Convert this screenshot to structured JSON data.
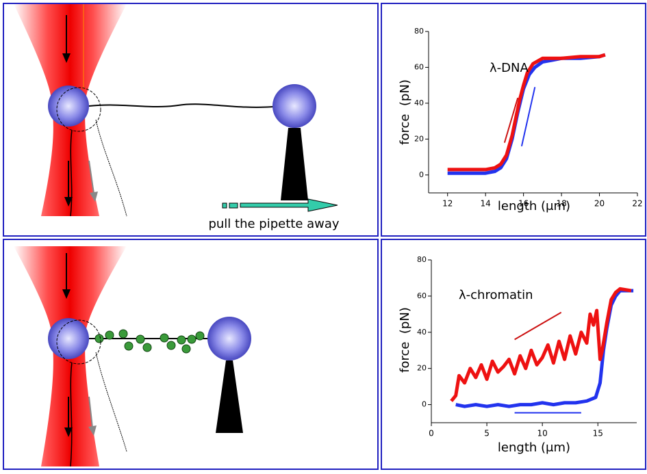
{
  "diagram": {
    "caption": "pull the pipette away"
  },
  "chart_data": [
    {
      "type": "line",
      "annotation": "λ-DNA",
      "x_label": "length (μm)",
      "y_label": "force  (pN)",
      "xlim": [
        11,
        22
      ],
      "ylim": [
        -10,
        80
      ],
      "xticks": [
        12,
        14,
        16,
        18,
        20,
        22
      ],
      "yticks": [
        0,
        20,
        40,
        60,
        80
      ],
      "series": [
        {
          "color": "#2233ee",
          "x": [
            12,
            13,
            14,
            14.5,
            14.8,
            15.1,
            15.4,
            15.7,
            16,
            16.3,
            16.6,
            17,
            17.5,
            18,
            19,
            20,
            20.3
          ],
          "values": [
            1,
            1,
            1,
            2,
            4,
            9,
            20,
            35,
            48,
            56,
            60,
            63,
            64,
            65,
            65,
            66,
            67
          ]
        },
        {
          "color": "#ee1111",
          "x": [
            12,
            13,
            14,
            14.5,
            14.8,
            15.1,
            15.4,
            15.6,
            15.8,
            16,
            16.2,
            16.5,
            17,
            18,
            19,
            20,
            20.3
          ],
          "values": [
            3,
            3,
            3,
            4,
            6,
            11,
            22,
            32,
            42,
            50,
            57,
            62,
            65,
            65,
            66,
            66,
            67
          ]
        }
      ],
      "guides": [
        {
          "color": "#cc1111",
          "x": [
            15.0,
            15.7
          ],
          "values": [
            18,
            43
          ]
        },
        {
          "color": "#2233ee",
          "x": [
            15.9,
            16.6
          ],
          "values": [
            16,
            49
          ]
        }
      ]
    },
    {
      "type": "line",
      "annotation": "λ-chromatin",
      "x_label": "length (μm)",
      "y_label": "force  (pN)",
      "xlim": [
        0,
        18.5
      ],
      "ylim": [
        -10,
        80
      ],
      "xticks": [
        0,
        5,
        10,
        15
      ],
      "yticks": [
        0,
        20,
        40,
        60,
        80
      ],
      "series": [
        {
          "color": "#2233ee",
          "x": [
            2.2,
            3,
            4,
            5,
            6,
            7,
            8,
            9,
            10,
            11,
            12,
            13,
            14,
            14.8,
            15.2,
            15.5,
            15.8,
            16.2,
            16.6,
            17,
            18.2
          ],
          "values": [
            0,
            -1,
            0,
            -1,
            0,
            -1,
            0,
            0,
            1,
            0,
            1,
            1,
            2,
            4,
            12,
            30,
            42,
            55,
            60,
            63,
            63
          ]
        },
        {
          "color": "#ee1111",
          "x": [
            1.8,
            2.2,
            2.5,
            3,
            3.5,
            4,
            4.5,
            5,
            5.5,
            6,
            6.5,
            7,
            7.5,
            8,
            8.5,
            9,
            9.5,
            10,
            10.5,
            11,
            11.5,
            12,
            12.5,
            13,
            13.5,
            14,
            14.3,
            14.6,
            14.9,
            15.2,
            15.4,
            15.8,
            16.2,
            16.6,
            17,
            18
          ],
          "values": [
            2,
            5,
            16,
            12,
            20,
            15,
            22,
            14,
            24,
            18,
            21,
            25,
            17,
            27,
            20,
            30,
            22,
            26,
            33,
            23,
            35,
            25,
            38,
            28,
            40,
            34,
            50,
            44,
            52,
            25,
            30,
            45,
            58,
            62,
            64,
            63
          ]
        }
      ],
      "guides": [
        {
          "color": "#cc1111",
          "x": [
            7.5,
            11.7
          ],
          "values": [
            36,
            51
          ]
        },
        {
          "color": "#2233ee",
          "x": [
            7.5,
            13.5
          ],
          "values": [
            -4.5,
            -4.5
          ]
        }
      ]
    }
  ]
}
